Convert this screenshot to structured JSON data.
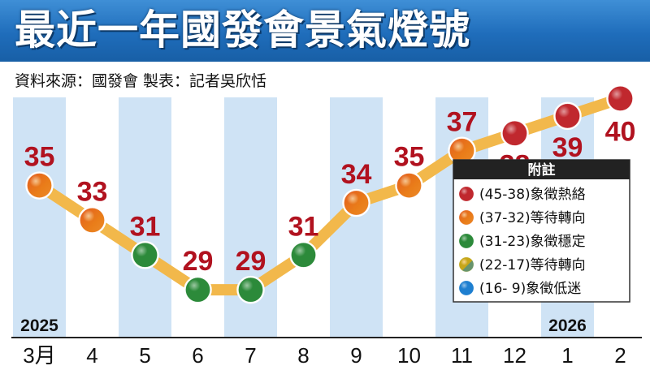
{
  "title": "最近一年國發會景氣燈號",
  "source": "資料來源：國發會  製表：記者吳欣恬",
  "colors": {
    "title_bg": "#1f6dbb",
    "stripe": "#cfe3f5",
    "line": "#f2b84b",
    "label": "#b1121f",
    "red": "#c0282e",
    "yellow_red": "#e35b1f",
    "yellow": "#f1a712",
    "green": "#2c8a3a",
    "yellow_blue": "#a3a51c",
    "blue": "#1e7fd0"
  },
  "chart_data": {
    "type": "line",
    "categories": [
      "3月",
      "4",
      "5",
      "6",
      "7",
      "8",
      "9",
      "10",
      "11",
      "12",
      "1",
      "2"
    ],
    "values": [
      35,
      33,
      31,
      29,
      29,
      31,
      34,
      35,
      37,
      38,
      39,
      40
    ],
    "signals": [
      "yellow_red",
      "yellow_red",
      "green",
      "green",
      "green",
      "green",
      "yellow_red",
      "yellow_red",
      "yellow_red",
      "red",
      "red",
      "red"
    ],
    "year_labels": [
      {
        "category_index": 0,
        "text": "2025"
      },
      {
        "category_index": 10,
        "text": "2026"
      }
    ],
    "ylim": [
      27,
      41
    ],
    "legend": {
      "title": "附註",
      "placement": "right",
      "items": [
        {
          "range": "(45-38)",
          "meaning": "象徵熱絡",
          "signal": "red"
        },
        {
          "range": "(37-32)",
          "meaning": "等待轉向",
          "signal": "yellow_red"
        },
        {
          "range": "(31-23)",
          "meaning": "象徵穩定",
          "signal": "green"
        },
        {
          "range": "(22-17)",
          "meaning": "等待轉向",
          "signal": "yellow_blue"
        },
        {
          "range": "(16-  9)",
          "meaning": "象徵低迷",
          "signal": "blue"
        }
      ]
    }
  }
}
